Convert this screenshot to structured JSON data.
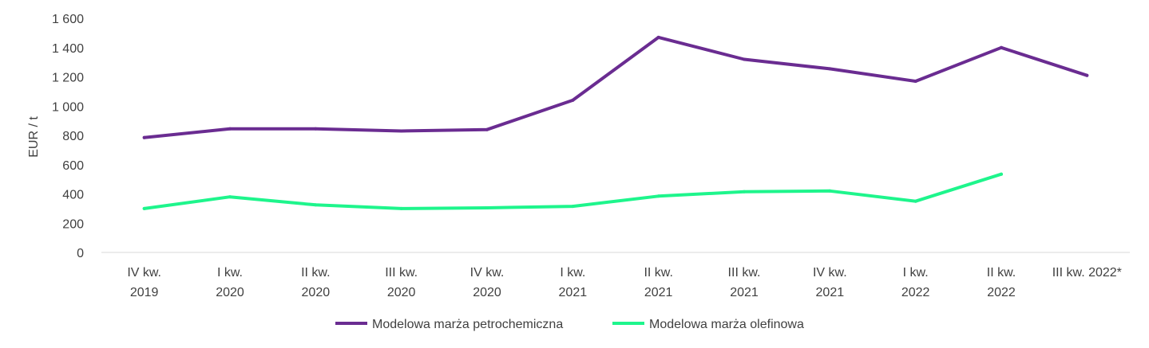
{
  "chart_data": {
    "type": "line",
    "title": "",
    "xlabel": "",
    "ylabel": "EUR / t",
    "ylim": [
      0,
      1600
    ],
    "yticks": [
      "0",
      "200",
      "400",
      "600",
      "800",
      "1 000",
      "1 200",
      "1 400",
      "1 600"
    ],
    "categories": [
      [
        "IV kw.",
        "2019"
      ],
      [
        "I kw.",
        "2020"
      ],
      [
        "II kw.",
        "2020"
      ],
      [
        "III kw.",
        "2020"
      ],
      [
        "IV kw.",
        "2020"
      ],
      [
        "I kw.",
        "2021"
      ],
      [
        "II kw.",
        "2021"
      ],
      [
        "III kw.",
        "2021"
      ],
      [
        "IV kw.",
        "2021"
      ],
      [
        "I kw.",
        "2022"
      ],
      [
        "II kw.",
        "2022"
      ],
      [
        "III kw. 2022*",
        ""
      ]
    ],
    "series": [
      {
        "name": "Modelowa marża petrochemiczna",
        "color": "#6a2c91",
        "values": [
          785,
          845,
          845,
          830,
          840,
          1040,
          1470,
          1320,
          1255,
          1170,
          1400,
          1210
        ]
      },
      {
        "name": "Modelowa marża olefinowa",
        "color": "#1ef58c",
        "values": [
          300,
          380,
          325,
          300,
          305,
          315,
          385,
          415,
          420,
          350,
          535,
          null
        ]
      }
    ],
    "grid": false,
    "legend": "bottom-center"
  }
}
